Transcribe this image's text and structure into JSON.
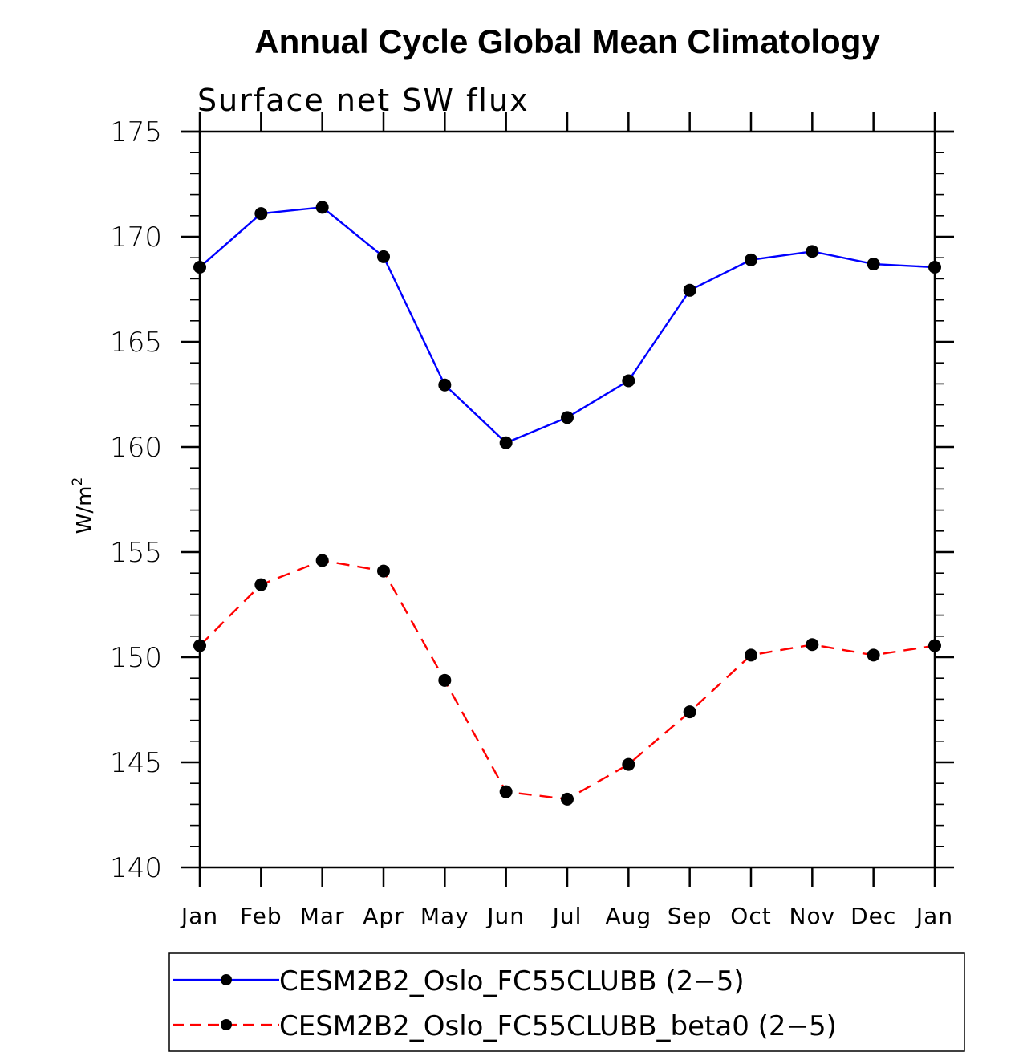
{
  "chart_data": {
    "type": "line",
    "title": "Annual Cycle Global Mean Climatology",
    "subtitle": "Surface net SW flux",
    "xlabel": "",
    "ylabel": "W/m",
    "ylabel_superscript": "2",
    "categories": [
      "Jan",
      "Feb",
      "Mar",
      "Apr",
      "May",
      "Jun",
      "Jul",
      "Aug",
      "Sep",
      "Oct",
      "Nov",
      "Dec",
      "Jan"
    ],
    "ylim": [
      140,
      175
    ],
    "yticks": [
      140,
      145,
      150,
      155,
      160,
      165,
      170,
      175
    ],
    "yminor_step": 1,
    "grid": false,
    "legend_position": "bottom",
    "series": [
      {
        "name": "CESM2B2_Oslo_FC55CLUBB (2−5)",
        "color": "#0000ff",
        "line_style": "solid",
        "marker": "filled-circle",
        "marker_color": "#000000",
        "values": [
          168.55,
          171.1,
          171.4,
          169.05,
          162.95,
          160.2,
          161.4,
          163.15,
          167.45,
          168.9,
          169.3,
          168.7,
          168.55
        ]
      },
      {
        "name": "CESM2B2_Oslo_FC55CLUBB_beta0 (2−5)",
        "color": "#ff0000",
        "line_style": "dashed",
        "marker": "filled-circle",
        "marker_color": "#000000",
        "values": [
          150.55,
          153.45,
          154.6,
          154.1,
          148.9,
          143.6,
          143.25,
          144.9,
          147.4,
          150.1,
          150.6,
          150.1,
          150.55
        ]
      }
    ]
  }
}
